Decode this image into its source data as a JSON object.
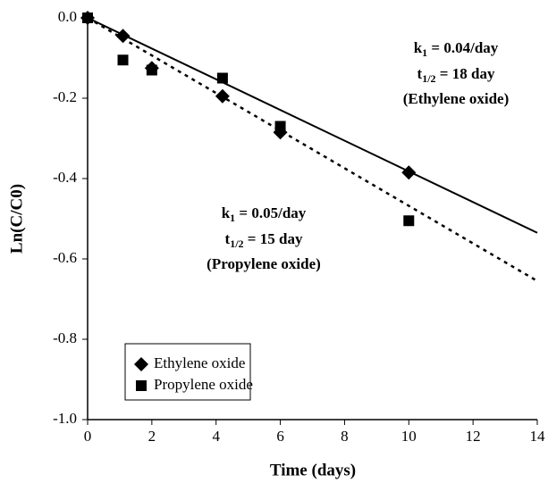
{
  "chart_data": {
    "type": "scatter",
    "xlabel": "Time (days)",
    "ylabel": "Ln(C/C0)",
    "xlim": [
      0,
      14
    ],
    "xticks": [
      0,
      2,
      4,
      6,
      8,
      10,
      12,
      14
    ],
    "ylim": [
      -1.0,
      0.0
    ],
    "yticks": [
      {
        "value": 0.0,
        "label": "0.0"
      },
      -0.2,
      -0.4,
      -0.6,
      -0.8,
      {
        "value": -1.0,
        "label": "-1.0"
      }
    ],
    "series": [
      {
        "name": "Ethylene oxide",
        "color": "#000000",
        "marker": "diamond",
        "x": [
          0,
          1.1,
          2,
          4.2,
          6,
          10
        ],
        "values": [
          0,
          -0.045,
          -0.125,
          -0.195,
          -0.285,
          -0.385
        ]
      },
      {
        "name": "Propylene oxide",
        "color": "#000000",
        "marker": "square",
        "x": [
          0,
          1.1,
          2,
          4.2,
          6,
          10
        ],
        "values": [
          0,
          -0.105,
          -0.13,
          -0.15,
          -0.27,
          -0.505
        ]
      }
    ],
    "trendlines": [
      {
        "color": "#000000",
        "dash": false,
        "x": [
          0,
          14
        ],
        "values": [
          0,
          -0.535
        ]
      },
      {
        "color": "#000000",
        "dash": true,
        "x": [
          0,
          14
        ],
        "values": [
          0,
          -0.655
        ]
      }
    ],
    "annotations": [
      {
        "lines": [
          [
            "k",
            "1",
            " = 0.04/day"
          ],
          [
            "t",
            "1/2",
            " = 18 day"
          ],
          [
            "(Ethylene oxide)"
          ]
        ]
      },
      {
        "lines": [
          [
            "k",
            "1",
            " = 0.05/day"
          ],
          [
            "t",
            "1/2",
            " = 15 day"
          ],
          [
            "(Propylene oxide)"
          ]
        ]
      }
    ],
    "legend": "lower left"
  }
}
